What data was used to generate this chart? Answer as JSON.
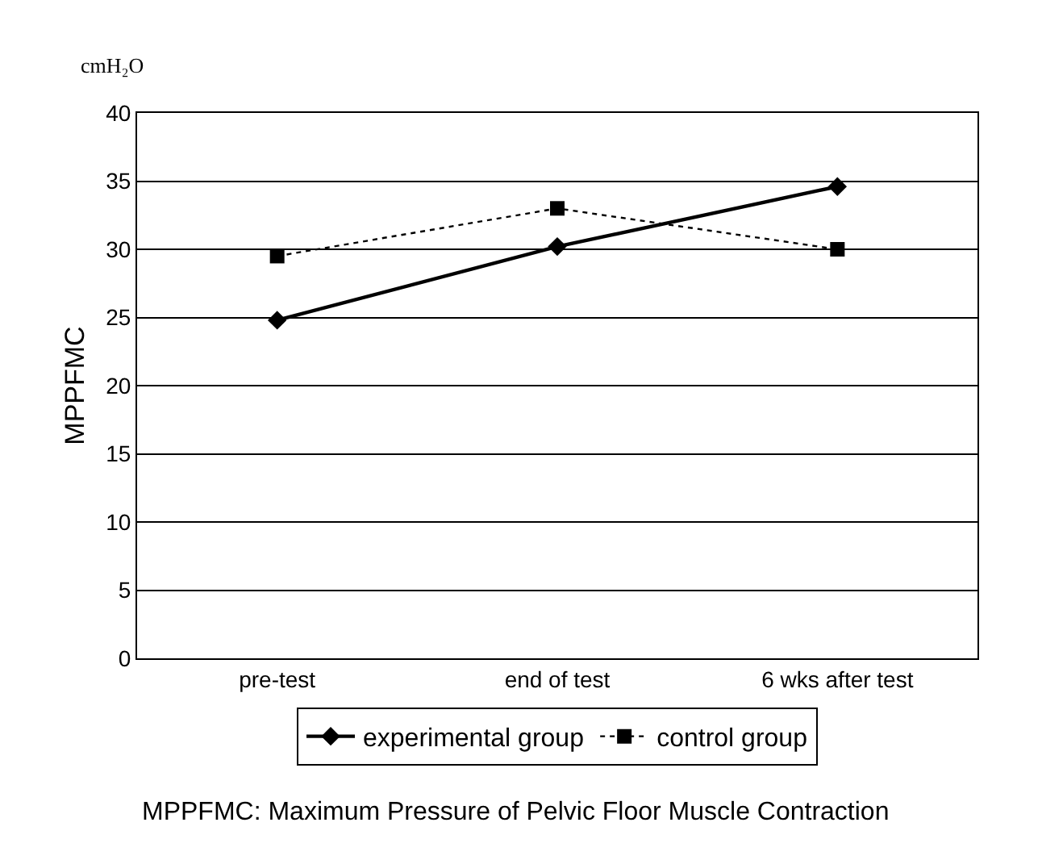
{
  "chart_data": {
    "type": "line",
    "categories": [
      "pre-test",
      "end of test",
      "6 wks after test"
    ],
    "series": [
      {
        "name": "experimental group",
        "color": "#000000",
        "values": [
          24.8,
          30.2,
          34.6
        ],
        "marker": "diamond",
        "line_style": "solid"
      },
      {
        "name": "control group",
        "color": "#000000",
        "values": [
          29.5,
          33.0,
          30.0
        ],
        "marker": "square",
        "line_style": "dotted"
      }
    ],
    "ylabel": "MPPFMC",
    "ylim": [
      0,
      40
    ],
    "yticks": [
      0,
      5,
      10,
      15,
      20,
      25,
      30,
      35,
      40
    ],
    "grid": "y",
    "legend": "bottom",
    "annotations": [
      "cmH₂O",
      "MPPFMC: Maximum Pressure of Pelvic Floor Muscle Contraction"
    ]
  }
}
